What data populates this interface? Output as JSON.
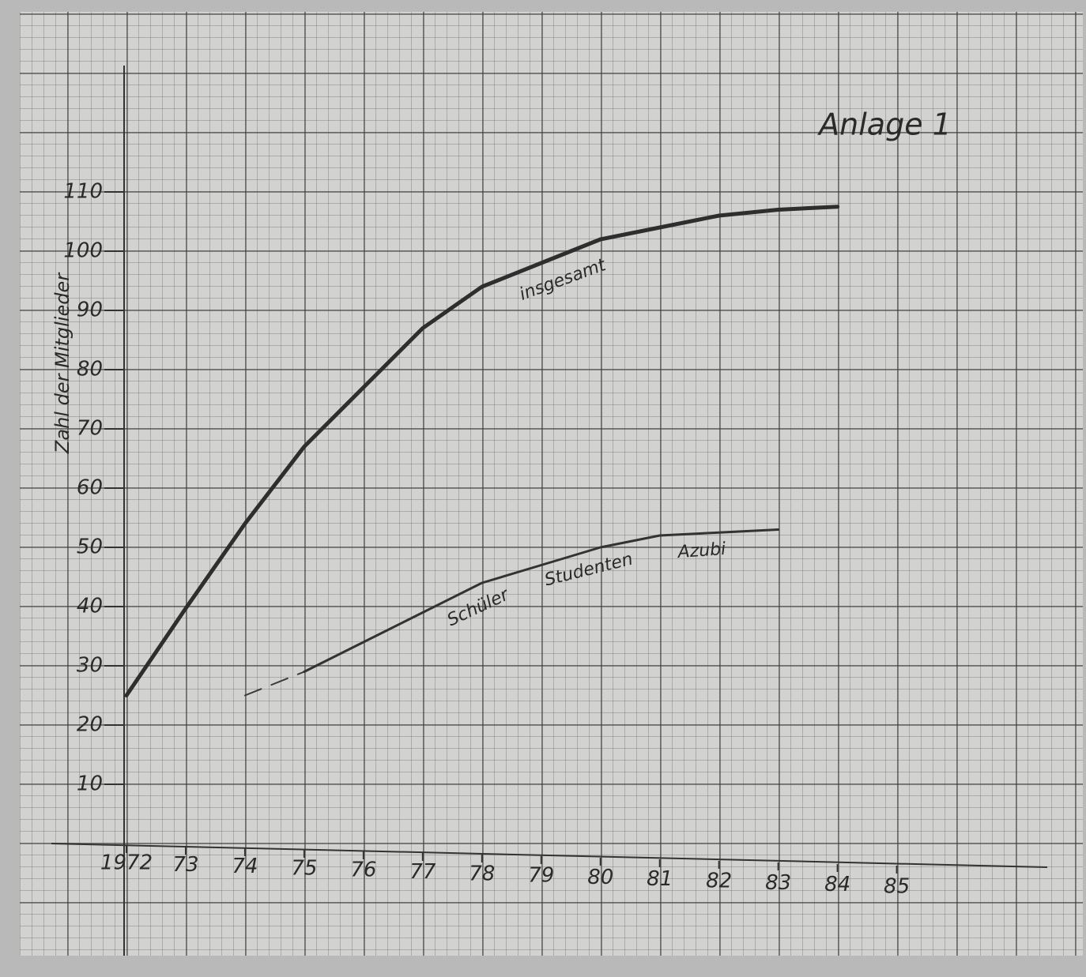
{
  "chart_data": {
    "type": "line",
    "title": "Anlage 1",
    "y_label": "Zahl der Mitglieder",
    "x": [
      1972,
      1973,
      1974,
      1975,
      1976,
      1977,
      1978,
      1979,
      1980,
      1981,
      1982,
      1983,
      1984
    ],
    "series": [
      {
        "name": "insgesamt",
        "color": "#2e2e2e",
        "width": 5,
        "style": "solid",
        "values": [
          25,
          39.7,
          54,
          67,
          77,
          87,
          94,
          98,
          102,
          104,
          106,
          107,
          107.5
        ]
      },
      {
        "color": "#3a3a3a",
        "width": 2,
        "style": "dashed",
        "values": [
          null,
          null,
          25,
          29,
          null,
          null,
          null,
          null,
          null,
          null,
          null,
          null,
          null
        ]
      },
      {
        "color": "#333333",
        "width": 3,
        "style": "solid",
        "values": [
          null,
          null,
          null,
          29,
          34,
          39,
          44,
          47,
          50,
          52,
          52.5,
          53,
          null
        ]
      }
    ],
    "annotations": [
      "Schüler",
      "Studenten",
      "Azubi"
    ],
    "xlim": [
      1972,
      1987.5
    ],
    "ylim": [
      0,
      130
    ],
    "xticks": [
      {
        "value": 1972,
        "label": "1972"
      },
      {
        "value": 1973,
        "label": "73"
      },
      {
        "value": 1974,
        "label": "74"
      },
      {
        "value": 1975,
        "label": "75"
      },
      {
        "value": 1976,
        "label": "76"
      },
      {
        "value": 1977,
        "label": "77"
      },
      {
        "value": 1978,
        "label": "78"
      },
      {
        "value": 1979,
        "label": "79"
      },
      {
        "value": 1980,
        "label": "80"
      },
      {
        "value": 1981,
        "label": "81"
      },
      {
        "value": 1982,
        "label": "82"
      },
      {
        "value": 1983,
        "label": "83"
      },
      {
        "value": 1984,
        "label": "84"
      },
      {
        "value": 1985,
        "label": "85"
      }
    ],
    "yticks": [
      10,
      20,
      30,
      40,
      50,
      60,
      70,
      80,
      90,
      100,
      110
    ]
  }
}
